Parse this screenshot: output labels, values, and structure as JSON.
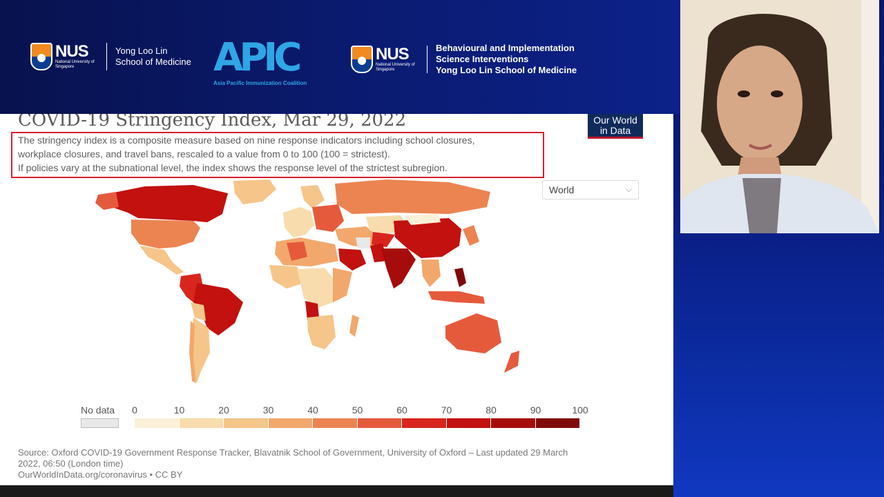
{
  "header": {
    "logo_left": {
      "wordmark": "NUS",
      "small_text": "National University of Singapore",
      "school_text": "Yong Loo Lin School of Medicine"
    },
    "apic": {
      "wordmark": "APIC",
      "subtitle": "Asia Pacific Immunization Coalition"
    },
    "logo_right": {
      "wordmark": "NUS",
      "small_text": "National University of Singapore",
      "line1": "Behavioural and Implementation",
      "line2": "Science Interventions",
      "line3": "Yong Loo Lin School of Medicine"
    }
  },
  "slide": {
    "title": "COVID-19 Stringency Index, Mar 29, 2022",
    "badge": {
      "line1": "Our World",
      "line2": "in Data"
    },
    "description": [
      "The stringency index is a composite measure based on nine response indicators including school closures,",
      "workplace closures, and travel bans, rescaled to a value from 0 to 100 (100 = strictest).",
      "If policies vary at the subnational level, the index shows the response level of the strictest subregion."
    ],
    "region_select": {
      "value": "World"
    },
    "legend": {
      "no_data_label": "No data",
      "no_data_color": "#e8e8e8",
      "ticks": [
        "0",
        "10",
        "20",
        "30",
        "40",
        "50",
        "60",
        "70",
        "80",
        "90",
        "100"
      ],
      "colors": [
        "#fbf0d8",
        "#f8dcad",
        "#f5c589",
        "#f2a86c",
        "#ec8452",
        "#e65a3c",
        "#d8261e",
        "#c2110f",
        "#a70c0c",
        "#7f0a0a"
      ]
    },
    "source": [
      "Source: Oxford COVID-19 Government Response Tracker, Blavatnik School of Government, University of Oxford – Last updated 29 March",
      "2022, 06:50 (London time)",
      "OurWorldInData.org/coronavirus • CC BY"
    ]
  },
  "colors": {
    "accent_red": "#d81e2c",
    "owid_navy": "#102a5c",
    "background_navy": "#0a1570"
  }
}
